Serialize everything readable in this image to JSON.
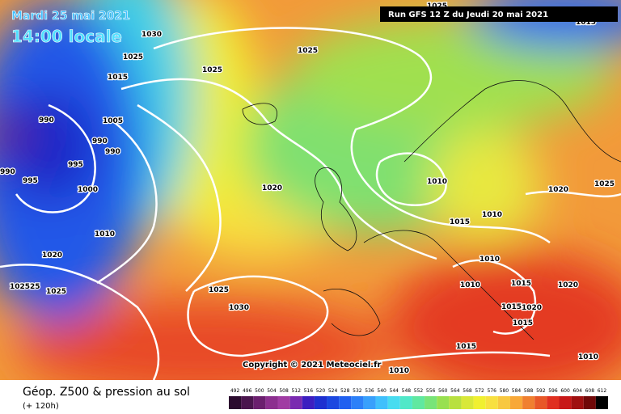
{
  "header": {
    "date": "Mardi 25 mai 2021",
    "time": "14:00 locale",
    "run": "Run GFS 12 Z du Jeudi 20 mai 2021"
  },
  "copyright": "Copyright © 2021 Meteociel.fr",
  "footer": {
    "title": "Géop. Z500 & pression au sol",
    "lead": "(+ 120h)"
  },
  "scale": {
    "labels": [
      492,
      496,
      500,
      504,
      508,
      512,
      516,
      520,
      524,
      528,
      532,
      536,
      540,
      544,
      548,
      552,
      556,
      560,
      564,
      568,
      572,
      576,
      580,
      584,
      588,
      592,
      596,
      600,
      604,
      608,
      612
    ],
    "colors": [
      "#2b0b2e",
      "#4a154d",
      "#6b1f6e",
      "#8c2f8f",
      "#a03ca3",
      "#7a2ab0",
      "#3c1ec0",
      "#1e30d0",
      "#1c48e0",
      "#2060f0",
      "#2c80f8",
      "#38a0fc",
      "#40c0fc",
      "#48dcf0",
      "#50e8c8",
      "#60e8a0",
      "#78e478",
      "#98e050",
      "#b8e040",
      "#d8e838",
      "#f0f030",
      "#f8e040",
      "#f8c840",
      "#f8a838",
      "#f08030",
      "#e85828",
      "#e03020",
      "#c81818",
      "#a01010",
      "#700808",
      "#000000"
    ]
  },
  "isobar_labels": [
    "1030",
    "1025",
    "1015",
    "1025",
    "1025",
    "990",
    "1005",
    "990",
    "990",
    "995",
    "990",
    "995",
    "1000",
    "1020",
    "1010",
    "1020",
    "1025",
    "1010",
    "1015",
    "1010",
    "1020",
    "1010",
    "1010",
    "1015",
    "1020",
    "102525",
    "1025",
    "1025",
    "1030",
    "1015",
    "1020",
    "1015",
    "1015",
    "1010",
    "1010",
    "1025",
    "1015"
  ]
}
